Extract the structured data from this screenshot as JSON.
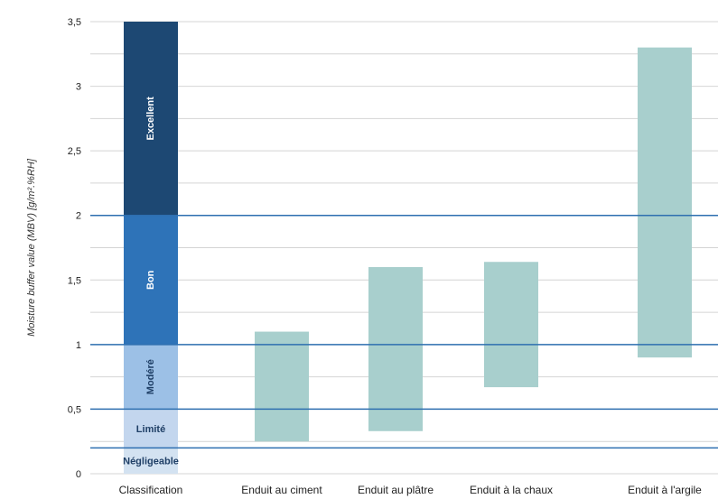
{
  "chart_data": {
    "type": "bar",
    "subtype": "floating-range",
    "title": "",
    "xlabel": "",
    "ylabel": "Moisture buffer value (MBV) [g/m².%RH]",
    "ylim": [
      0,
      3.5
    ],
    "yticks": [
      0,
      0.5,
      1,
      1.5,
      2,
      2.5,
      3,
      3.5
    ],
    "ytick_labels": [
      "0",
      "0,5",
      "1",
      "1,5",
      "2",
      "2,5",
      "3",
      "3,5"
    ],
    "grid": true,
    "categories": [
      "Classification",
      "Enduit au ciment",
      "Enduit au plâtre",
      "Enduit à la chaux",
      "Enduit à l'argile"
    ],
    "classification": [
      {
        "label": "Négligeable",
        "from": 0,
        "to": 0.2,
        "color": "#d3e2f1",
        "text_color": "#1f3f66"
      },
      {
        "label": "Limité",
        "from": 0.2,
        "to": 0.5,
        "color": "#c3d6ee",
        "text_color": "#1f3f66"
      },
      {
        "label": "Modéré",
        "from": 0.5,
        "to": 1.0,
        "color": "#9cc0e6",
        "text_color": "#1f3f66"
      },
      {
        "label": "Bon",
        "from": 1.0,
        "to": 2.0,
        "color": "#2e73b8",
        "text_color": "#ffffff"
      },
      {
        "label": "Excellent",
        "from": 2.0,
        "to": 3.5,
        "color": "#1d4873",
        "text_color": "#ffffff"
      }
    ],
    "ranges": [
      {
        "category": "Enduit au ciment",
        "low": 0.25,
        "high": 1.1
      },
      {
        "category": "Enduit au plâtre",
        "low": 0.33,
        "high": 1.6
      },
      {
        "category": "Enduit à la chaux",
        "low": 0.67,
        "high": 1.64
      },
      {
        "category": "Enduit à l'argile",
        "low": 0.9,
        "high": 3.3
      }
    ],
    "threshold_lines": [
      0.2,
      0.5,
      1.0,
      2.0
    ],
    "colors": {
      "range_bar": "#a8cfcd",
      "threshold_line": "#2e6fb0",
      "grid": "#d4d4d4"
    }
  }
}
